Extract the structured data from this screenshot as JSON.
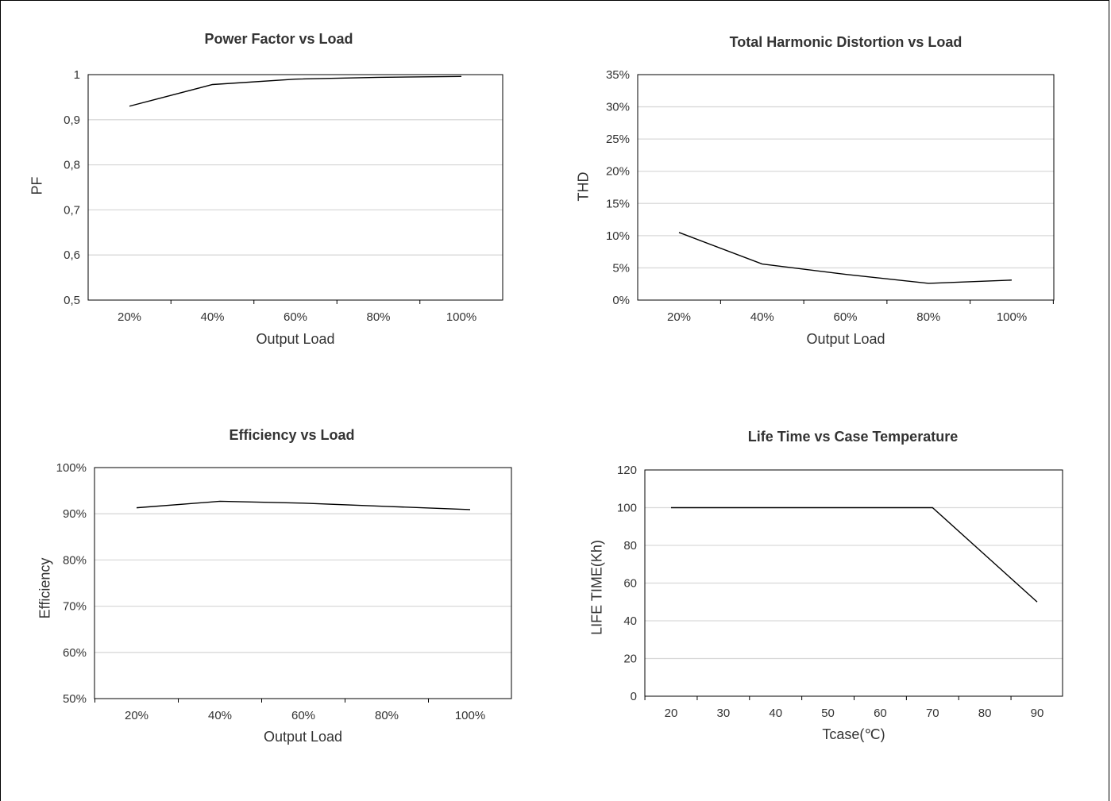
{
  "chart_data": [
    {
      "type": "line",
      "title": "Power Factor vs Load",
      "xlabel": "Output Load",
      "ylabel": "PF",
      "categories": [
        "20%",
        "40%",
        "60%",
        "80%",
        "100%"
      ],
      "series": [
        {
          "values": [
            0.93,
            0.978,
            0.99,
            0.994,
            0.996
          ]
        }
      ],
      "ylim": [
        0.5,
        1
      ],
      "yticks": [
        0.5,
        0.6,
        0.7,
        0.8,
        0.9,
        1
      ],
      "ytick_labels": [
        "0,5",
        "0,6",
        "0,7",
        "0,8",
        "0,9",
        "1"
      ],
      "grid": "horizontal"
    },
    {
      "type": "line",
      "title": "Total Harmonic Distortion vs Load",
      "xlabel": "Output Load",
      "ylabel": "THD",
      "categories": [
        "20%",
        "40%",
        "60%",
        "80%",
        "100%"
      ],
      "series": [
        {
          "values": [
            10.5,
            5.6,
            4.0,
            2.6,
            3.1
          ]
        }
      ],
      "ylim": [
        0,
        35
      ],
      "yticks": [
        0,
        5,
        10,
        15,
        20,
        25,
        30,
        35
      ],
      "ytick_labels": [
        "0%",
        "5%",
        "10%",
        "15%",
        "20%",
        "25%",
        "30%",
        "35%"
      ],
      "grid": "horizontal"
    },
    {
      "type": "line",
      "title": "Efficiency vs Load",
      "xlabel": "Output Load",
      "ylabel": "Efficiency",
      "categories": [
        "20%",
        "40%",
        "60%",
        "80%",
        "100%"
      ],
      "series": [
        {
          "values": [
            91.3,
            92.7,
            92.3,
            91.6,
            90.9
          ]
        }
      ],
      "ylim": [
        50,
        100
      ],
      "yticks": [
        50,
        60,
        70,
        80,
        90,
        100
      ],
      "ytick_labels": [
        "50%",
        "60%",
        "70%",
        "80%",
        "90%",
        "100%"
      ],
      "grid": "horizontal"
    },
    {
      "type": "line",
      "title": "Life Time vs Case Temperature",
      "xlabel": "Tcase(℃)",
      "ylabel": "LIFE TIME(Kh)",
      "categories": [
        "20",
        "30",
        "40",
        "50",
        "60",
        "70",
        "80",
        "90"
      ],
      "series": [
        {
          "values": [
            100,
            100,
            100,
            100,
            100,
            100,
            75,
            50
          ]
        }
      ],
      "ylim": [
        0,
        120
      ],
      "yticks": [
        0,
        20,
        40,
        60,
        80,
        100,
        120
      ],
      "ytick_labels": [
        "0",
        "20",
        "40",
        "60",
        "80",
        "100",
        "120"
      ],
      "grid": "horizontal"
    }
  ]
}
